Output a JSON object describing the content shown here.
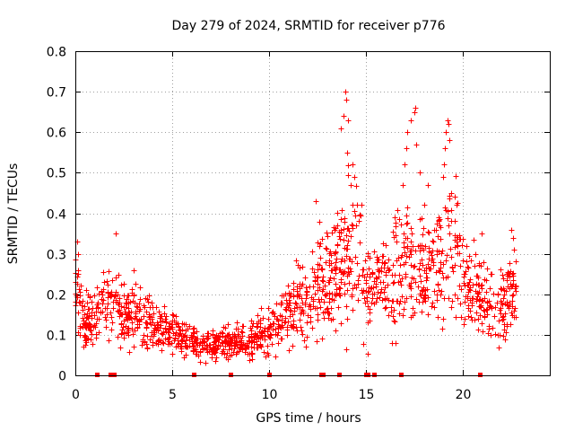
{
  "chart_data": {
    "type": "scatter",
    "title": "Day 279 of 2024, SRMTID for receiver p776",
    "xlabel": "GPS time / hours",
    "ylabel": "SRMTID / TECUs",
    "xlim": [
      0,
      24.5
    ],
    "ylim": [
      0,
      0.8
    ],
    "xticks": [
      0,
      5,
      10,
      15,
      20
    ],
    "yticks": [
      0,
      0.1,
      0.2,
      0.3,
      0.4,
      0.5,
      0.6,
      0.7,
      0.8
    ],
    "x_tick_labels": [
      "0",
      "5",
      "10",
      "15",
      "20"
    ],
    "y_tick_labels": [
      "0",
      "0.1",
      "0.2",
      "0.3",
      "0.4",
      "0.5",
      "0.6",
      "0.7",
      "0.8"
    ],
    "grid": true,
    "marker": "+",
    "marker_color": "#ff0000",
    "profile": {
      "hours": [
        0.0,
        0.5,
        1.0,
        1.5,
        2.0,
        2.5,
        3.0,
        3.5,
        4.0,
        4.5,
        5.0,
        5.5,
        6.0,
        6.5,
        7.0,
        7.5,
        8.0,
        8.5,
        9.0,
        9.5,
        10.0,
        10.5,
        11.0,
        11.5,
        12.0,
        12.5,
        13.0,
        13.5,
        14.0,
        14.5,
        15.0,
        15.5,
        16.0,
        16.5,
        17.0,
        17.5,
        18.0,
        18.5,
        19.0,
        19.5,
        20.0,
        20.5,
        21.0,
        21.5,
        22.0,
        22.5,
        22.8
      ],
      "median": [
        0.22,
        0.12,
        0.15,
        0.18,
        0.17,
        0.14,
        0.16,
        0.13,
        0.12,
        0.12,
        0.11,
        0.1,
        0.08,
        0.07,
        0.07,
        0.08,
        0.08,
        0.09,
        0.08,
        0.1,
        0.11,
        0.14,
        0.15,
        0.17,
        0.18,
        0.22,
        0.25,
        0.27,
        0.3,
        0.33,
        0.2,
        0.22,
        0.24,
        0.22,
        0.3,
        0.28,
        0.27,
        0.3,
        0.28,
        0.33,
        0.24,
        0.22,
        0.2,
        0.18,
        0.16,
        0.22,
        0.2
      ],
      "spread": [
        0.08,
        0.06,
        0.07,
        0.07,
        0.07,
        0.06,
        0.07,
        0.06,
        0.05,
        0.05,
        0.04,
        0.04,
        0.03,
        0.03,
        0.03,
        0.03,
        0.03,
        0.03,
        0.04,
        0.04,
        0.05,
        0.06,
        0.07,
        0.08,
        0.09,
        0.1,
        0.11,
        0.12,
        0.15,
        0.15,
        0.1,
        0.08,
        0.1,
        0.12,
        0.12,
        0.12,
        0.12,
        0.11,
        0.13,
        0.14,
        0.1,
        0.08,
        0.08,
        0.08,
        0.07,
        0.08,
        0.07
      ],
      "points_per_half_hour": 34
    },
    "spikes": [
      {
        "x": 0.1,
        "y": 0.33
      },
      {
        "x": 0.15,
        "y": 0.3
      },
      {
        "x": 2.1,
        "y": 0.35
      },
      {
        "x": 3.0,
        "y": 0.26
      },
      {
        "x": 12.4,
        "y": 0.43
      },
      {
        "x": 12.6,
        "y": 0.38
      },
      {
        "x": 13.7,
        "y": 0.61
      },
      {
        "x": 13.85,
        "y": 0.64
      },
      {
        "x": 13.95,
        "y": 0.7
      },
      {
        "x": 14.0,
        "y": 0.68
      },
      {
        "x": 14.1,
        "y": 0.63
      },
      {
        "x": 14.05,
        "y": 0.55
      },
      {
        "x": 14.3,
        "y": 0.52
      },
      {
        "x": 14.4,
        "y": 0.49
      },
      {
        "x": 14.2,
        "y": 0.47
      },
      {
        "x": 16.5,
        "y": 0.39
      },
      {
        "x": 16.9,
        "y": 0.47
      },
      {
        "x": 17.0,
        "y": 0.52
      },
      {
        "x": 17.1,
        "y": 0.56
      },
      {
        "x": 17.15,
        "y": 0.6
      },
      {
        "x": 17.3,
        "y": 0.63
      },
      {
        "x": 17.5,
        "y": 0.65
      },
      {
        "x": 17.55,
        "y": 0.66
      },
      {
        "x": 17.6,
        "y": 0.57
      },
      {
        "x": 17.8,
        "y": 0.5
      },
      {
        "x": 18.2,
        "y": 0.47
      },
      {
        "x": 18.0,
        "y": 0.42
      },
      {
        "x": 19.0,
        "y": 0.49
      },
      {
        "x": 19.05,
        "y": 0.52
      },
      {
        "x": 19.1,
        "y": 0.56
      },
      {
        "x": 19.15,
        "y": 0.6
      },
      {
        "x": 19.2,
        "y": 0.63
      },
      {
        "x": 19.25,
        "y": 0.62
      },
      {
        "x": 19.3,
        "y": 0.58
      },
      {
        "x": 19.4,
        "y": 0.45
      },
      {
        "x": 19.6,
        "y": 0.44
      },
      {
        "x": 21.0,
        "y": 0.35
      },
      {
        "x": 22.5,
        "y": 0.36
      },
      {
        "x": 22.6,
        "y": 0.34
      }
    ],
    "zero_markers": [
      1.1,
      1.8,
      2.0,
      6.1,
      8.0,
      10.0,
      12.7,
      12.8,
      13.6,
      15.0,
      15.1,
      15.4,
      16.8,
      20.9
    ]
  }
}
